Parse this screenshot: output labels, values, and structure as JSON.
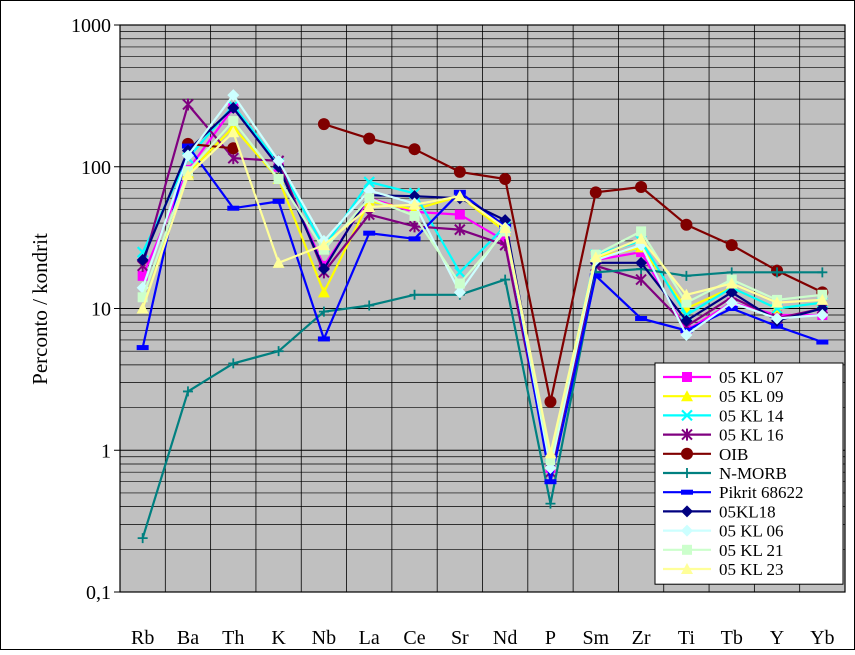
{
  "chart_data": {
    "type": "line",
    "ylabel": "Perconto / kondrit",
    "yscale": "log",
    "ylim": [
      0.1,
      1000
    ],
    "y_ticks": [
      0.1,
      1,
      10,
      100,
      1000
    ],
    "y_tick_labels": [
      "0,1",
      "1",
      "10",
      "100",
      "1000"
    ],
    "grid": true,
    "plot_background": "#c0c0c0",
    "legend_position": "bottom-right",
    "categories": [
      "Rb",
      "Ba",
      "Th",
      "K",
      "Nb",
      "La",
      "Ce",
      "Sr",
      "Nd",
      "P",
      "Sm",
      "Zr",
      "Ti",
      "Tb",
      "Y",
      "Yb"
    ],
    "series": [
      {
        "name": "05 KL 07",
        "color": "#ff00ff",
        "marker": "square",
        "values": [
          17,
          95,
          260,
          100,
          20,
          60,
          48,
          46,
          30,
          0.75,
          22,
          25,
          7,
          11,
          9,
          9
        ]
      },
      {
        "name": "05 KL 09",
        "color": "#ffff00",
        "marker": "triangle",
        "values": [
          10,
          90,
          190,
          82,
          13,
          57,
          50,
          62,
          35,
          0.8,
          23,
          27,
          10,
          14,
          10,
          11
        ]
      },
      {
        "name": "05 KL 14",
        "color": "#00ffff",
        "marker": "x",
        "values": [
          25,
          115,
          270,
          105,
          27,
          78,
          65,
          18,
          38,
          0.9,
          24,
          30,
          9,
          14,
          10,
          11
        ]
      },
      {
        "name": "05 KL 16",
        "color": "#800080",
        "marker": "asterisk",
        "values": [
          20,
          275,
          115,
          110,
          18,
          46,
          38,
          36,
          28,
          0.7,
          20,
          16,
          7.5,
          12,
          8.5,
          10
        ]
      },
      {
        "name": "OIB",
        "color": "#800000",
        "marker": "circle",
        "values": [
          null,
          145,
          135,
          null,
          200,
          158,
          133,
          92,
          82,
          2.2,
          66,
          72,
          39,
          28,
          18.5,
          13
        ]
      },
      {
        "name": "N-MORB",
        "color": "#008080",
        "marker": "plus",
        "values": [
          0.24,
          2.6,
          4.1,
          5,
          9.5,
          10.5,
          12.5,
          12.5,
          16,
          0.42,
          18,
          19,
          17,
          18,
          18,
          18
        ]
      },
      {
        "name": "Pikrit 68622",
        "color": "#0000ff",
        "marker": "dash",
        "values": [
          5.3,
          140,
          51,
          57,
          6.1,
          34,
          31,
          66,
          38,
          0.6,
          17,
          8.5,
          7,
          10,
          7.5,
          5.8
        ]
      },
      {
        "name": "05KL18",
        "color": "#000080",
        "marker": "diamond",
        "values": [
          22,
          130,
          260,
          100,
          19,
          63,
          62,
          60,
          42,
          0.8,
          21,
          21,
          8.2,
          13,
          8.2,
          10
        ]
      },
      {
        "name": "05 KL 06",
        "color": "#ccffff",
        "marker": "diamond",
        "values": [
          14,
          120,
          320,
          110,
          30,
          68,
          55,
          13,
          37,
          0.75,
          22,
          28,
          6.5,
          11,
          8.5,
          9
        ]
      },
      {
        "name": "05 KL 21",
        "color": "#ccffcc",
        "marker": "square",
        "values": [
          12,
          93,
          210,
          82,
          26,
          60,
          45,
          15,
          35,
          0.85,
          24,
          35,
          11,
          16,
          11.5,
          12.5
        ]
      },
      {
        "name": "05 KL 23",
        "color": "#ffff99",
        "marker": "triangle",
        "values": [
          10,
          87,
          175,
          21,
          28,
          52,
          54,
          62,
          37,
          0.95,
          23,
          31,
          12.5,
          15,
          11,
          11.5
        ]
      }
    ]
  }
}
